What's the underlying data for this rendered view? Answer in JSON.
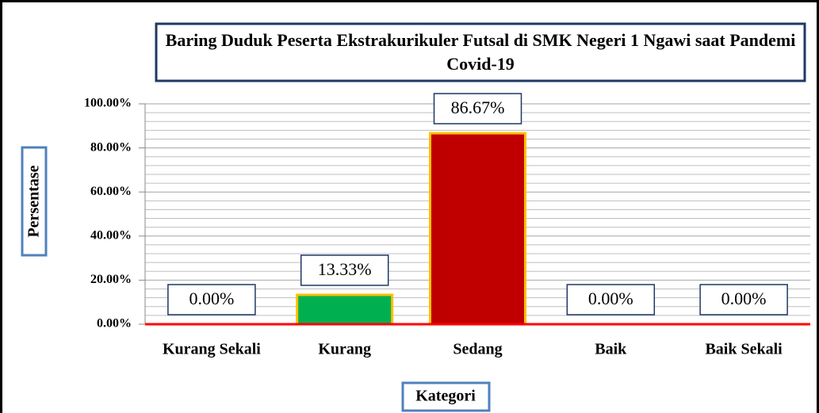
{
  "chart_data": {
    "type": "bar",
    "title": "Baring Duduk Peserta Ekstrakurikuler Futsal di SMK Negeri 1 Ngawi saat Pandemi Covid-19",
    "x_label": "Kategori",
    "y_label": "Persentase",
    "categories": [
      "Kurang Sekali",
      "Kurang",
      "Sedang",
      "Baik",
      "Baik Sekali"
    ],
    "values": [
      0,
      13.33,
      86.67,
      0,
      0
    ],
    "value_labels": [
      "0.00%",
      "13.33%",
      "86.67%",
      "0.00%",
      "0.00%"
    ],
    "colors": [
      "#00b050",
      "#00b050",
      "#c00000",
      "#00b050",
      "#00b050"
    ],
    "ylim": [
      0,
      100
    ],
    "yticks": [
      {
        "value": 0,
        "label": "0.00%"
      },
      {
        "value": 20,
        "label": "20.00%"
      },
      {
        "value": 40,
        "label": "40.00%"
      },
      {
        "value": 60,
        "label": "60.00%"
      },
      {
        "value": 80,
        "label": "80.00%"
      },
      {
        "value": 100,
        "label": "100.00%"
      }
    ],
    "minor_yticks": [
      4,
      8,
      12,
      16,
      24,
      28,
      32,
      36,
      44,
      48,
      52,
      56,
      64,
      68,
      72,
      76,
      84,
      88,
      92,
      96
    ],
    "grid": true
  }
}
